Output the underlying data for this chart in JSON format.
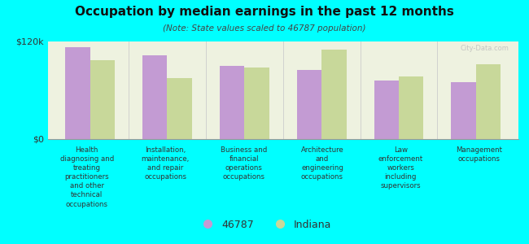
{
  "title": "Occupation by median earnings in the past 12 months",
  "subtitle": "(Note: State values scaled to 46787 population)",
  "background_color": "#00FFFF",
  "plot_bg_color": "#eef2e0",
  "categories": [
    "Health\ndiagnosing and\ntreating\npractitioners\nand other\ntechnical\noccupations",
    "Installation,\nmaintenance,\nand repair\noccupations",
    "Business and\nfinancial\noperations\noccupations",
    "Architecture\nand\nengineering\noccupations",
    "Law\nenforcement\nworkers\nincluding\nsupervisors",
    "Management\noccupations"
  ],
  "values_46787": [
    113000,
    103000,
    90000,
    85000,
    72000,
    70000
  ],
  "values_indiana": [
    97000,
    75000,
    88000,
    110000,
    77000,
    92000
  ],
  "color_46787": "#c39bd3",
  "color_indiana": "#c8d89a",
  "ylim": [
    0,
    120000
  ],
  "ytick_labels": [
    "$0",
    "$120k"
  ],
  "legend_label_1": "46787",
  "legend_label_2": "Indiana",
  "watermark": "City-Data.com"
}
